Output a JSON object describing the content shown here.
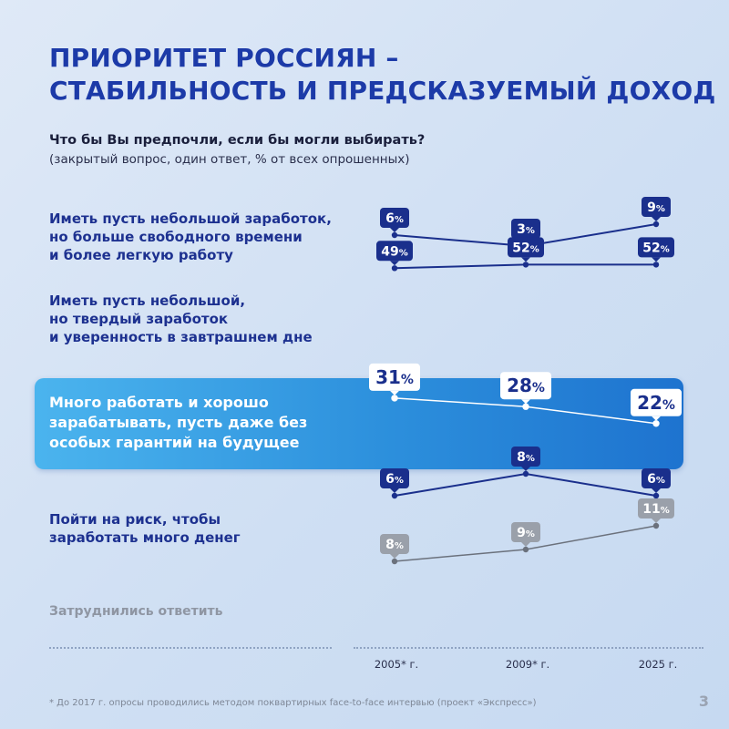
{
  "title_lines": [
    "ПРИОРИТЕТ РОССИЯН –",
    "СТАБИЛЬНОСТЬ И ПРЕДСКАЗУЕМЫЙ ДОХОД"
  ],
  "question": "Что бы Вы предпочли, если бы могли выбирать?",
  "note": "(закрытый вопрос, один ответ, % от всех опрошенных)",
  "colors": {
    "title": "#1c3aa8",
    "badge_dark": "#1a2f8c",
    "badge_grey": "#9aa0aa",
    "line_dark": "#1a2f8c",
    "line_grey": "#6b717c",
    "highlight_start": "#4bb4ee",
    "highlight_end": "#1e73cf"
  },
  "rows": [
    {
      "label_lines": [
        "Иметь пусть небольшой заработок,",
        "но больше свободного времени",
        "и более легкую работу"
      ]
    },
    {
      "label_lines": [
        "Иметь пусть небольшой,",
        "но твердый заработок",
        "и уверенность в завтрашнем дне"
      ]
    },
    {
      "label_lines": [
        "Много работать и хорошо",
        "зарабатывать, пусть даже без",
        "особых гарантий на будущее"
      ]
    },
    {
      "label_lines": [
        "Пойти на риск, чтобы",
        "заработать много денег"
      ]
    },
    {
      "label_lines": [
        "Затруднились ответить"
      ]
    }
  ],
  "chart_data": {
    "type": "line",
    "x": [
      "2005* г.",
      "2009* г.",
      "2025 г."
    ],
    "unit": "%",
    "series": [
      {
        "name": "Иметь пусть небольшой заработок, но больше свободного времени и более легкую работу",
        "values": [
          6,
          3,
          9
        ],
        "style": "dark"
      },
      {
        "name": "Иметь пусть небольшой, но твердый заработок и уверенность в завтрашнем дне",
        "values": [
          49,
          52,
          52
        ],
        "style": "dark"
      },
      {
        "name": "Много работать и хорошо зарабатывать, пусть даже без особых гарантий на будущее",
        "values": [
          31,
          28,
          22
        ],
        "style": "highlight"
      },
      {
        "name": "Пойти на риск, чтобы заработать много денег",
        "values": [
          6,
          8,
          6
        ],
        "style": "dark"
      },
      {
        "name": "Затруднились ответить",
        "values": [
          8,
          9,
          11
        ],
        "style": "grey"
      }
    ]
  },
  "footnote": "* До 2017 г. опросы проводились методом поквартирных face-to-face интервью (проект «Экспресс»)",
  "page_number": "3"
}
